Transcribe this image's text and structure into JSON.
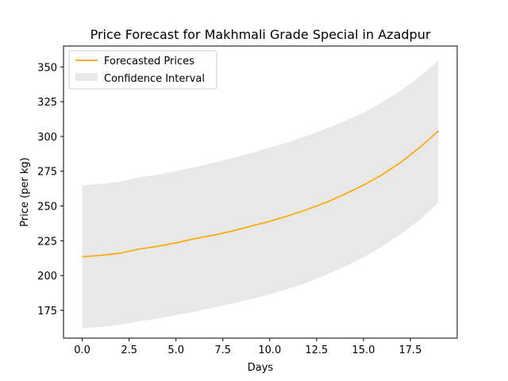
{
  "chart_data": {
    "type": "line",
    "title": "Price Forecast for Makhmali Grade Special in Azadpur",
    "xlabel": "Days",
    "ylabel": "Price (per kg)",
    "xlim": [
      -1,
      20
    ],
    "ylim": [
      155,
      365
    ],
    "xticks": [
      0,
      2.5,
      5,
      7.5,
      10,
      12.5,
      15,
      17.5
    ],
    "xtick_labels": [
      "0.0",
      "2.5",
      "5.0",
      "7.5",
      "10.0",
      "12.5",
      "15.0",
      "17.5"
    ],
    "yticks": [
      175,
      200,
      225,
      250,
      275,
      300,
      325,
      350
    ],
    "ytick_labels": [
      "175",
      "200",
      "225",
      "250",
      "275",
      "300",
      "325",
      "350"
    ],
    "grid": false,
    "legend_position": "top-left",
    "series": [
      {
        "name": "Forecasted Prices",
        "color": "#FFA500",
        "x": [
          0,
          1,
          2,
          3,
          4,
          5,
          6,
          7,
          8,
          9,
          10,
          11,
          12,
          13,
          14,
          15,
          16,
          17,
          18,
          19
        ],
        "values": [
          213.5,
          214.5,
          216,
          219,
          221,
          223.5,
          226.5,
          229,
          232,
          235.5,
          239,
          243,
          247.5,
          252.5,
          258.5,
          265,
          272.5,
          281.5,
          292,
          304
        ]
      }
    ],
    "confidence_interval": {
      "name": "Confidence Interval",
      "color": "#e8e8e8",
      "x": [
        0,
        1,
        2,
        3,
        4,
        5,
        6,
        7,
        8,
        9,
        10,
        11,
        12,
        13,
        14,
        15,
        16,
        17,
        18,
        19
      ],
      "lower": [
        162,
        163,
        164.5,
        167,
        169,
        171.5,
        174,
        177,
        180,
        183,
        186.5,
        190.5,
        195,
        200.5,
        206.5,
        213,
        221,
        230,
        240,
        252.5
      ],
      "upper": [
        265,
        266,
        267.5,
        270.5,
        272.5,
        275,
        278,
        281,
        284.5,
        288,
        292,
        296,
        300.5,
        305.5,
        311,
        317,
        324.5,
        333,
        343,
        355
      ]
    }
  }
}
